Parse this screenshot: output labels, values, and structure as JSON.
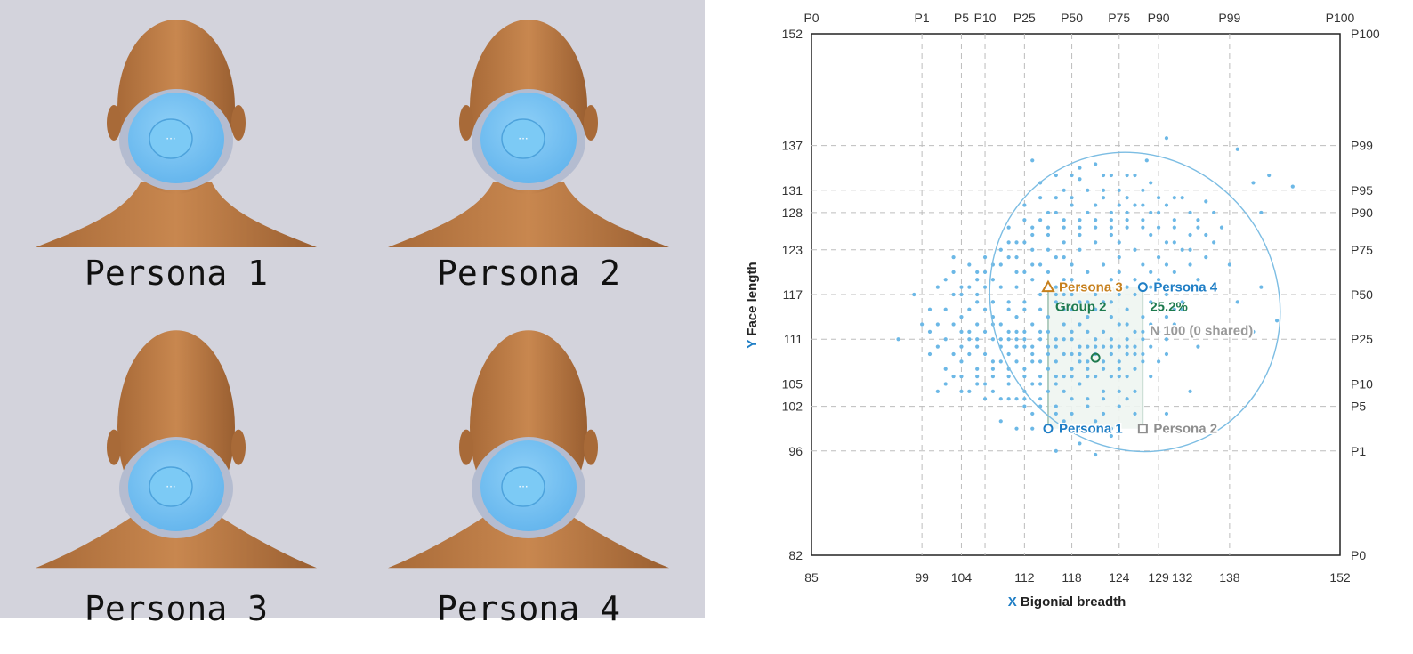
{
  "personas": [
    {
      "label": "Persona 1"
    },
    {
      "label": "Persona 2"
    },
    {
      "label": "Persona 3"
    },
    {
      "label": "Persona 4"
    }
  ],
  "colors": {
    "background_left": "#d3d3dc",
    "skin": "#c8874f",
    "mask": "#5fb2ec",
    "mask_frame": "#b4bcd0",
    "points": "#6cb8e6",
    "ellipse": "#7cbde3",
    "persona1": "#1f7ec5",
    "persona2": "#8e8e8e",
    "persona3": "#c7801d",
    "persona4": "#1f7ec5",
    "group": "#1e7a4e"
  },
  "chart_data": {
    "type": "scatter",
    "xlabel_letter": "X",
    "xlabel": "Bigonial breadth",
    "ylabel_letter": "Y",
    "ylabel": "Face length",
    "xlim": [
      85,
      152
    ],
    "ylim": [
      82,
      152
    ],
    "x_ticks": [
      85,
      99,
      104,
      112,
      118,
      124,
      129,
      132,
      138,
      152
    ],
    "y_ticks": [
      82,
      96,
      102,
      105,
      111,
      117,
      123,
      128,
      131,
      137,
      152
    ],
    "x_percentiles": [
      {
        "label": "P0",
        "value": 85
      },
      {
        "label": "P1",
        "value": 99
      },
      {
        "label": "P5",
        "value": 104
      },
      {
        "label": "P10",
        "value": 107
      },
      {
        "label": "P25",
        "value": 112
      },
      {
        "label": "P50",
        "value": 118
      },
      {
        "label": "P75",
        "value": 124
      },
      {
        "label": "P90",
        "value": 129
      },
      {
        "label": "P99",
        "value": 138
      },
      {
        "label": "P100",
        "value": 152
      }
    ],
    "y_percentiles": [
      {
        "label": "P0",
        "value": 82
      },
      {
        "label": "P1",
        "value": 96
      },
      {
        "label": "P5",
        "value": 102
      },
      {
        "label": "P10",
        "value": 105
      },
      {
        "label": "P25",
        "value": 111
      },
      {
        "label": "P50",
        "value": 117
      },
      {
        "label": "P75",
        "value": 123
      },
      {
        "label": "P90",
        "value": 128
      },
      {
        "label": "P95",
        "value": 131
      },
      {
        "label": "P99",
        "value": 137
      },
      {
        "label": "P100",
        "value": 152
      }
    ],
    "ellipse": {
      "cx": 126,
      "cy": 116,
      "rx": 18,
      "ry": 20.5,
      "rotation": 33
    },
    "group_box": {
      "x0": 115,
      "x1": 127,
      "y0": 99,
      "y1": 118
    },
    "personas": [
      {
        "name": "Persona 1",
        "x": 115,
        "y": 99,
        "marker": "circle"
      },
      {
        "name": "Persona 2",
        "x": 127,
        "y": 99,
        "marker": "square"
      },
      {
        "name": "Persona 3",
        "x": 115,
        "y": 118,
        "marker": "triangle"
      },
      {
        "name": "Persona 4",
        "x": 127,
        "y": 118,
        "marker": "circle"
      }
    ],
    "group": {
      "label": "Group 2",
      "share": "25.2%",
      "n_label": "N 100 (0 shared)",
      "center_x": 121,
      "center_y": 108.5
    },
    "points": [
      [
        121,
        134.5
      ],
      [
        127.5,
        135
      ],
      [
        130,
        138
      ],
      [
        139,
        136.5
      ],
      [
        143,
        133
      ],
      [
        146,
        131.5
      ],
      [
        141,
        132
      ],
      [
        142,
        128
      ],
      [
        135,
        129.5
      ],
      [
        98,
        117
      ],
      [
        96,
        111
      ],
      [
        100,
        112
      ],
      [
        103,
        122
      ],
      [
        104,
        117
      ],
      [
        106,
        120
      ],
      [
        108,
        116
      ],
      [
        105,
        109
      ],
      [
        102,
        107
      ],
      [
        101,
        104
      ],
      [
        107,
        103
      ],
      [
        109,
        100
      ],
      [
        113,
        99
      ],
      [
        116,
        96
      ],
      [
        121,
        95.5
      ],
      [
        130,
        101
      ],
      [
        133,
        104
      ],
      [
        134,
        110
      ],
      [
        139,
        116
      ],
      [
        141,
        112
      ],
      [
        144,
        113.5
      ],
      [
        142,
        118
      ],
      [
        138,
        121
      ],
      [
        136,
        124
      ],
      [
        134,
        127
      ],
      [
        131,
        130
      ],
      [
        128,
        132
      ],
      [
        125,
        133
      ],
      [
        119,
        132.5
      ],
      [
        117,
        131
      ],
      [
        114,
        130
      ],
      [
        112,
        127
      ],
      [
        110,
        124
      ],
      [
        108,
        121
      ],
      [
        113,
        135
      ],
      [
        118,
        130
      ],
      [
        122,
        131
      ],
      [
        120,
        128
      ],
      [
        108,
        111
      ],
      [
        109,
        110
      ],
      [
        110,
        112
      ],
      [
        111,
        111
      ],
      [
        112,
        110
      ],
      [
        110,
        109
      ],
      [
        109,
        108
      ],
      [
        111,
        108
      ],
      [
        113,
        109
      ],
      [
        112,
        112
      ],
      [
        114,
        111
      ],
      [
        115,
        112
      ],
      [
        116,
        110
      ],
      [
        117,
        113
      ],
      [
        116,
        108
      ],
      [
        118,
        111
      ],
      [
        119,
        109
      ],
      [
        118,
        107
      ],
      [
        120,
        112
      ],
      [
        117,
        106
      ],
      [
        115,
        107
      ],
      [
        114,
        106
      ],
      [
        113,
        105
      ],
      [
        112,
        104
      ],
      [
        115,
        104
      ],
      [
        117,
        104
      ],
      [
        119,
        105
      ],
      [
        121,
        106
      ],
      [
        122,
        104
      ],
      [
        123,
        106
      ],
      [
        124,
        108
      ],
      [
        125,
        110
      ],
      [
        123,
        111
      ],
      [
        122,
        112
      ],
      [
        121,
        110
      ],
      [
        124,
        113
      ],
      [
        126,
        112
      ],
      [
        125,
        115
      ],
      [
        123,
        116
      ],
      [
        120,
        114
      ],
      [
        118,
        115
      ],
      [
        116,
        116
      ],
      [
        114,
        117
      ],
      [
        112,
        115
      ],
      [
        110,
        116
      ],
      [
        108,
        114
      ],
      [
        106,
        113
      ],
      [
        107,
        109
      ],
      [
        105,
        112
      ],
      [
        104,
        110
      ],
      [
        106,
        107
      ],
      [
        108,
        106
      ],
      [
        110,
        105
      ],
      [
        112,
        102
      ],
      [
        114,
        103
      ],
      [
        116,
        102
      ],
      [
        118,
        101
      ],
      [
        120,
        103
      ],
      [
        122,
        101
      ],
      [
        124,
        102
      ],
      [
        126,
        104
      ],
      [
        128,
        106
      ],
      [
        129,
        108
      ],
      [
        130,
        111
      ],
      [
        131,
        113
      ],
      [
        132,
        115
      ],
      [
        130,
        117
      ],
      [
        128,
        116
      ],
      [
        127,
        114
      ],
      [
        129,
        119
      ],
      [
        131,
        120
      ],
      [
        133,
        121
      ],
      [
        132,
        123
      ],
      [
        130,
        124
      ],
      [
        128,
        125
      ],
      [
        126,
        123
      ],
      [
        124,
        122
      ],
      [
        122,
        121
      ],
      [
        120,
        120
      ],
      [
        118,
        121
      ],
      [
        116,
        122
      ],
      [
        114,
        121
      ],
      [
        112,
        120
      ],
      [
        111,
        118
      ],
      [
        113,
        119
      ],
      [
        115,
        120
      ],
      [
        117,
        119
      ],
      [
        119,
        118
      ],
      [
        121,
        117
      ],
      [
        123,
        119
      ],
      [
        125,
        118
      ],
      [
        127,
        121
      ],
      [
        129,
        122
      ],
      [
        131,
        126
      ],
      [
        133,
        128
      ],
      [
        127,
        127
      ],
      [
        125,
        126
      ],
      [
        123,
        125
      ],
      [
        121,
        124
      ],
      [
        119,
        125
      ],
      [
        117,
        124
      ],
      [
        115,
        125
      ],
      [
        113,
        123
      ],
      [
        111,
        122
      ],
      [
        119,
        127
      ],
      [
        121,
        129
      ],
      [
        123,
        128
      ],
      [
        125,
        130
      ],
      [
        127,
        129
      ],
      [
        129,
        128
      ],
      [
        117,
        127
      ],
      [
        115,
        128
      ],
      [
        113,
        126
      ],
      [
        109,
        118
      ],
      [
        107,
        118
      ],
      [
        106,
        116
      ],
      [
        104,
        114
      ],
      [
        103,
        113
      ],
      [
        102,
        115
      ],
      [
        101,
        113
      ],
      [
        105,
        115
      ],
      [
        107,
        115
      ],
      [
        109,
        113
      ],
      [
        111,
        114
      ],
      [
        113,
        113
      ],
      [
        115,
        114
      ],
      [
        117,
        115
      ],
      [
        119,
        116
      ],
      [
        121,
        115
      ],
      [
        123,
        114
      ],
      [
        125,
        113
      ],
      [
        127,
        111
      ],
      [
        126,
        109
      ],
      [
        124,
        106
      ],
      [
        122,
        108
      ],
      [
        120,
        108
      ],
      [
        118,
        109
      ],
      [
        116,
        106
      ],
      [
        114,
        108
      ],
      [
        112,
        107
      ],
      [
        110,
        107
      ],
      [
        108,
        108
      ],
      [
        106,
        110
      ],
      [
        104,
        108
      ],
      [
        103,
        106
      ],
      [
        105,
        104
      ],
      [
        107,
        105
      ],
      [
        109,
        103
      ],
      [
        111,
        103
      ],
      [
        113,
        101
      ],
      [
        119,
        99
      ],
      [
        121,
        100
      ],
      [
        123,
        99
      ],
      [
        117,
        100
      ],
      [
        115,
        99
      ],
      [
        125,
        106
      ],
      [
        127,
        108
      ],
      [
        126,
        101
      ],
      [
        120,
        106
      ],
      [
        119,
        113
      ],
      [
        117,
        117
      ],
      [
        116,
        118
      ],
      [
        118,
        119
      ],
      [
        120,
        118
      ],
      [
        122,
        118
      ],
      [
        124,
        120
      ],
      [
        126,
        119
      ],
      [
        128,
        120
      ],
      [
        130,
        121
      ],
      [
        132,
        118
      ],
      [
        134,
        119
      ],
      [
        135,
        122
      ],
      [
        133,
        125
      ],
      [
        131,
        127
      ],
      [
        129,
        130
      ],
      [
        127,
        131
      ],
      [
        125,
        128
      ],
      [
        123,
        127
      ],
      [
        121,
        126
      ],
      [
        119,
        123
      ],
      [
        117,
        122
      ],
      [
        115,
        123
      ],
      [
        113,
        121
      ],
      [
        111,
        120
      ],
      [
        109,
        121
      ],
      [
        107,
        120
      ],
      [
        105,
        118
      ],
      [
        103,
        117
      ],
      [
        101,
        118
      ],
      [
        100,
        115
      ],
      [
        99,
        113
      ],
      [
        100,
        109
      ],
      [
        101,
        110
      ],
      [
        102,
        111
      ],
      [
        103,
        109
      ],
      [
        104,
        112
      ],
      [
        105,
        111
      ],
      [
        106,
        111
      ],
      [
        107,
        112
      ],
      [
        108,
        113
      ],
      [
        109,
        111
      ],
      [
        110,
        111
      ],
      [
        111,
        112
      ],
      [
        112,
        111
      ],
      [
        113,
        110
      ],
      [
        114,
        112
      ],
      [
        115,
        110
      ],
      [
        116,
        111
      ],
      [
        117,
        111
      ],
      [
        118,
        112
      ],
      [
        119,
        110
      ],
      [
        120,
        110
      ],
      [
        121,
        111
      ],
      [
        122,
        110
      ],
      [
        123,
        109
      ],
      [
        124,
        110
      ],
      [
        125,
        111
      ],
      [
        126,
        110
      ],
      [
        127,
        112
      ],
      [
        128,
        113
      ],
      [
        129,
        112
      ],
      [
        130,
        114
      ],
      [
        131,
        115
      ],
      [
        132,
        116
      ],
      [
        128,
        118
      ],
      [
        126,
        117
      ],
      [
        124,
        117
      ],
      [
        122,
        116
      ],
      [
        120,
        116
      ],
      [
        118,
        117
      ],
      [
        116,
        117
      ],
      [
        114,
        115
      ],
      [
        112,
        116
      ],
      [
        110,
        115
      ],
      [
        108,
        116
      ],
      [
        106,
        117
      ],
      [
        104,
        118
      ],
      [
        102,
        119
      ],
      [
        103,
        120
      ],
      [
        105,
        121
      ],
      [
        107,
        122
      ],
      [
        109,
        123
      ],
      [
        111,
        124
      ],
      [
        113,
        125
      ],
      [
        115,
        126
      ],
      [
        117,
        126
      ],
      [
        119,
        126
      ],
      [
        121,
        127
      ],
      [
        123,
        126
      ],
      [
        125,
        127
      ],
      [
        127,
        126
      ],
      [
        129,
        126
      ],
      [
        131,
        124
      ],
      [
        133,
        123
      ],
      [
        135,
        125
      ],
      [
        137,
        126
      ],
      [
        136,
        128
      ],
      [
        134,
        126
      ],
      [
        132,
        130
      ],
      [
        130,
        129
      ],
      [
        128,
        128
      ],
      [
        126,
        129
      ],
      [
        124,
        129
      ],
      [
        122,
        130
      ],
      [
        120,
        131
      ],
      [
        118,
        129
      ],
      [
        116,
        128
      ],
      [
        114,
        127
      ],
      [
        112,
        124
      ],
      [
        110,
        122
      ],
      [
        108,
        119
      ],
      [
        106,
        119
      ],
      [
        119,
        134
      ],
      [
        123,
        133
      ],
      [
        116,
        133
      ],
      [
        114,
        132
      ],
      [
        126,
        133
      ],
      [
        124,
        131
      ],
      [
        122,
        133
      ],
      [
        116,
        130
      ],
      [
        118,
        133
      ],
      [
        124,
        124
      ],
      [
        110,
        126
      ],
      [
        112,
        129
      ],
      [
        111,
        110
      ],
      [
        113,
        108
      ],
      [
        115,
        109
      ],
      [
        117,
        109
      ],
      [
        119,
        108
      ],
      [
        121,
        109
      ],
      [
        123,
        110
      ],
      [
        125,
        109
      ],
      [
        127,
        109
      ],
      [
        126,
        107
      ],
      [
        124,
        107
      ],
      [
        122,
        107
      ],
      [
        120,
        107
      ],
      [
        118,
        106
      ],
      [
        116,
        105
      ],
      [
        114,
        105
      ],
      [
        112,
        106
      ],
      [
        110,
        106
      ],
      [
        108,
        107
      ],
      [
        106,
        106
      ],
      [
        104,
        106
      ],
      [
        102,
        105
      ],
      [
        104,
        104
      ],
      [
        106,
        105
      ],
      [
        108,
        104
      ],
      [
        110,
        103
      ],
      [
        112,
        103
      ],
      [
        114,
        102
      ],
      [
        116,
        101
      ],
      [
        118,
        103
      ],
      [
        120,
        102
      ],
      [
        122,
        103
      ],
      [
        124,
        104
      ],
      [
        119,
        97
      ],
      [
        123,
        98
      ],
      [
        111,
        99
      ],
      [
        125,
        103
      ],
      [
        128,
        110
      ],
      [
        130,
        109
      ],
      [
        132,
        112
      ]
    ]
  }
}
